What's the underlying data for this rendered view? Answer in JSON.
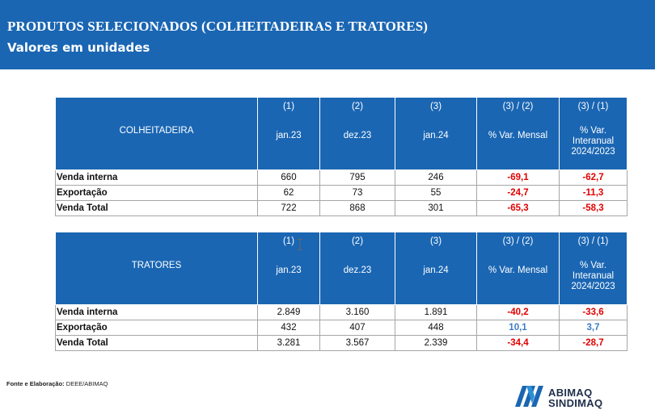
{
  "header": {
    "title": "PRODUTOS SELECIONADOS (COLHEITADEIRAS E TRATORES)",
    "subtitle": "Valores em unidades"
  },
  "colors": {
    "header_bg": "#1a66b3",
    "negative": "#e00000",
    "positive": "#3a7cc6"
  },
  "columns": [
    {
      "num": "(1)",
      "period": "jan.23"
    },
    {
      "num": "(2)",
      "period": "dez.23"
    },
    {
      "num": "(3)",
      "period": "jan.24"
    },
    {
      "num": "(3) / (2)",
      "period": "% Var. Mensal"
    },
    {
      "num": "(3) / (1)",
      "period_lines": [
        "% Var.",
        "Interanual",
        "2024/2023"
      ]
    }
  ],
  "tables": [
    {
      "label": "COLHEITADEIRA",
      "rows": [
        {
          "label": "Venda interna",
          "v1": "660",
          "v2": "795",
          "v3": "246",
          "var_m": "-69,1",
          "var_a": "-62,7"
        },
        {
          "label": "Exportação",
          "v1": "62",
          "v2": "73",
          "v3": "55",
          "var_m": "-24,7",
          "var_a": "-11,3"
        },
        {
          "label": "Venda Total",
          "v1": "722",
          "v2": "868",
          "v3": "301",
          "var_m": "-65,3",
          "var_a": "-58,3"
        }
      ]
    },
    {
      "label": "TRATORES",
      "rows": [
        {
          "label": "Venda interna",
          "v1": "2.849",
          "v2": "3.160",
          "v3": "1.891",
          "var_m": "-40,2",
          "var_a": "-33,6"
        },
        {
          "label": "Exportação",
          "v1": "432",
          "v2": "407",
          "v3": "448",
          "var_m": "10,1",
          "var_a": "3,7"
        },
        {
          "label": "Venda Total",
          "v1": "3.281",
          "v2": "3.567",
          "v3": "2.339",
          "var_m": "-34,4",
          "var_a": "-28,7"
        }
      ]
    }
  ],
  "source": {
    "label": "Fonte e Elaboração:",
    "value": "DEEE/ABIMAQ"
  },
  "logo": {
    "line1": "ABIMAQ",
    "line2": "SINDIMAQ",
    "icon": "abimaq-logo-icon"
  }
}
